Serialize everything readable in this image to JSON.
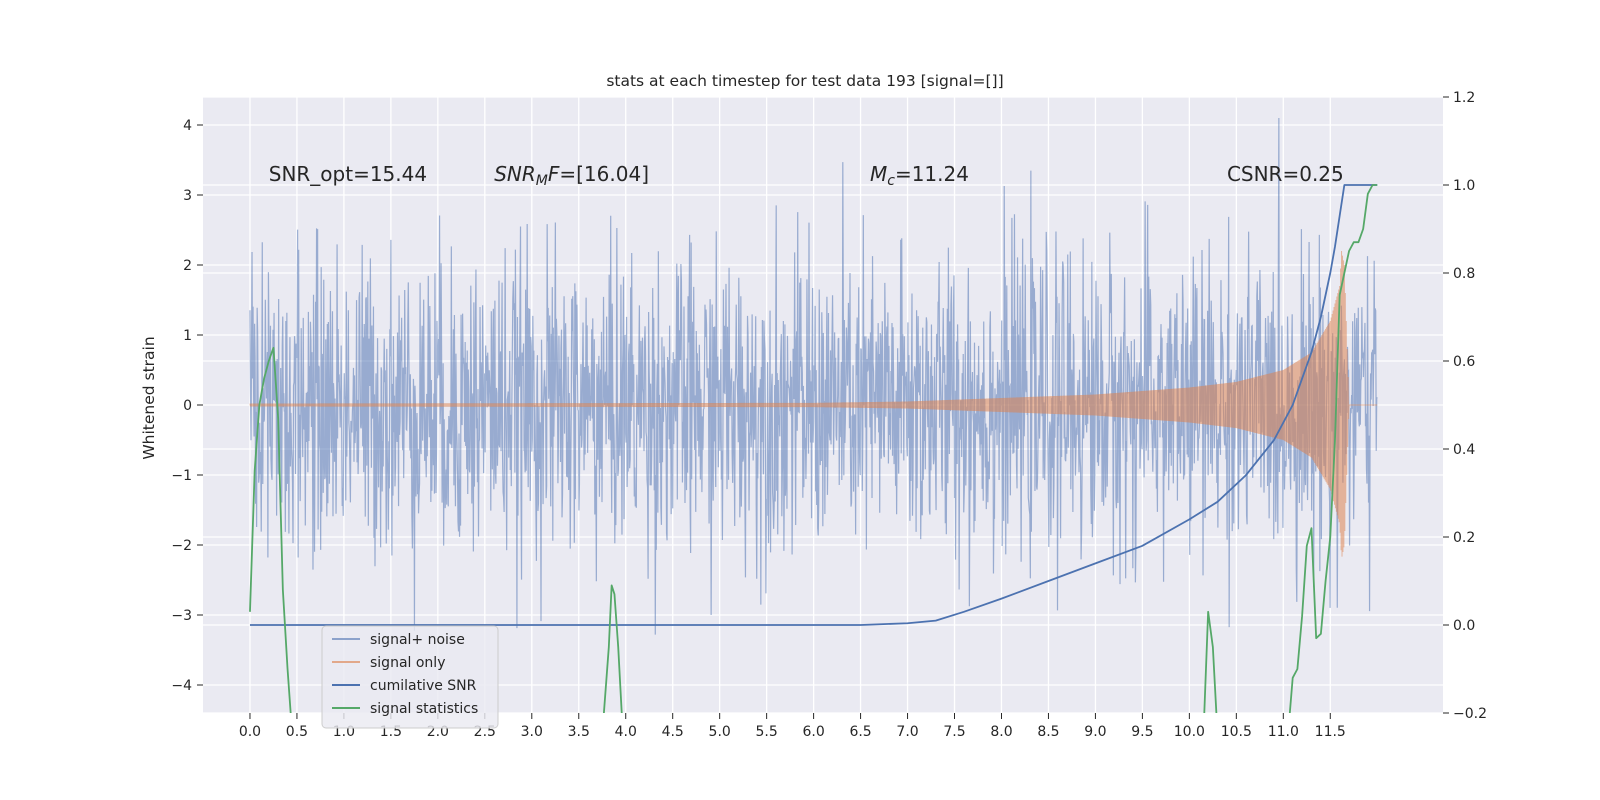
{
  "chart_data": {
    "type": "line",
    "title": "stats at each timestep for test data 193 [signal=[]]",
    "ylabel": "Whitened strain",
    "xlabel": "",
    "x_ticks": [
      "0.0",
      "0.5",
      "1.0",
      "1.5",
      "2.0",
      "2.5",
      "3.0",
      "3.5",
      "4.0",
      "4.5",
      "5.0",
      "5.5",
      "6.0",
      "6.5",
      "7.0",
      "7.5",
      "8.0",
      "8.5",
      "9.0",
      "9.5",
      "10.0",
      "10.5",
      "11.0",
      "11.5"
    ],
    "xlim": [
      -0.5,
      12.7
    ],
    "ylim_left": [
      -4.4,
      4.4
    ],
    "y_ticks_left": [
      "4",
      "3",
      "2",
      "1",
      "0",
      "−1",
      "−2",
      "−3",
      "−4"
    ],
    "ylim_right": [
      -0.2,
      1.2
    ],
    "y_ticks_right": [
      "1.2",
      "1.0",
      "0.8",
      "0.6",
      "0.4",
      "0.2",
      "0.0",
      "−0.2"
    ],
    "grid": true,
    "legend_position": "lower-left",
    "annotations": [
      {
        "pre": "SNR_opt=15.44",
        "sym": "",
        "sub": "",
        "post": "",
        "x": 0.2,
        "y": 3.3
      },
      {
        "pre": "",
        "sym": "SNR",
        "sub": "M",
        "post": "F=[16.04]",
        "x": 2.6,
        "y": 3.3
      },
      {
        "pre": "",
        "sym": "M",
        "sub": "c",
        "post": "=11.24",
        "x": 6.6,
        "y": 3.3
      },
      {
        "pre": "CSNR=0.25",
        "sym": "",
        "sub": "",
        "post": "",
        "x": 10.4,
        "y": 3.3
      }
    ],
    "series": [
      {
        "name": "signal+ noise",
        "color": "#4c72b0",
        "axis": "left",
        "style": "noise",
        "x_range": [
          0.0,
          12.0
        ],
        "envelope": 3.2
      },
      {
        "name": "signal only",
        "color": "#dd8452",
        "axis": "left",
        "style": "chirp",
        "x_range": [
          0.0,
          12.0
        ],
        "amplitude_x": [
          0.0,
          6.0,
          7.0,
          8.0,
          9.0,
          10.0,
          10.5,
          11.0,
          11.3,
          11.5,
          11.6,
          11.62,
          11.65,
          11.7,
          12.0
        ],
        "amplitude_y": [
          0.02,
          0.03,
          0.05,
          0.1,
          0.15,
          0.25,
          0.33,
          0.5,
          0.75,
          1.2,
          1.7,
          2.2,
          2.0,
          0.0,
          0.0
        ]
      },
      {
        "name": "cumilative SNR",
        "color": "#4c72b0",
        "axis": "right",
        "x": [
          0.0,
          6.5,
          7.0,
          7.3,
          7.6,
          8.0,
          8.5,
          9.0,
          9.5,
          10.0,
          10.3,
          10.6,
          10.9,
          11.1,
          11.3,
          11.4,
          11.5,
          11.55,
          11.6,
          11.65,
          12.0
        ],
        "y": [
          0.0,
          0.0,
          0.004,
          0.01,
          0.03,
          0.06,
          0.1,
          0.14,
          0.18,
          0.24,
          0.28,
          0.34,
          0.42,
          0.5,
          0.62,
          0.7,
          0.8,
          0.86,
          0.93,
          1.0,
          1.0
        ]
      },
      {
        "name": "signal statistics",
        "color": "#55a868",
        "axis": "right",
        "x": [
          0.0,
          0.05,
          0.1,
          0.15,
          0.2,
          0.25,
          0.3,
          0.35,
          0.4,
          0.45,
          3.75,
          3.82,
          3.85,
          3.88,
          3.92,
          3.97,
          10.15,
          10.2,
          10.25,
          10.3,
          11.05,
          11.1,
          11.15,
          11.2,
          11.25,
          11.3,
          11.35,
          11.4,
          11.45,
          11.5,
          11.55,
          11.6,
          11.65,
          11.7,
          11.75,
          11.8,
          11.85,
          11.9,
          11.95,
          12.0
        ],
        "y": [
          0.03,
          0.35,
          0.5,
          0.56,
          0.6,
          0.63,
          0.47,
          0.08,
          -0.1,
          -0.25,
          -0.25,
          -0.05,
          0.09,
          0.07,
          -0.05,
          -0.25,
          -0.25,
          0.03,
          -0.05,
          -0.25,
          -0.25,
          -0.12,
          -0.1,
          0.02,
          0.18,
          0.22,
          -0.03,
          -0.02,
          0.1,
          0.2,
          0.42,
          0.75,
          0.8,
          0.85,
          0.87,
          0.87,
          0.9,
          0.98,
          1.0,
          1.0
        ]
      }
    ]
  }
}
